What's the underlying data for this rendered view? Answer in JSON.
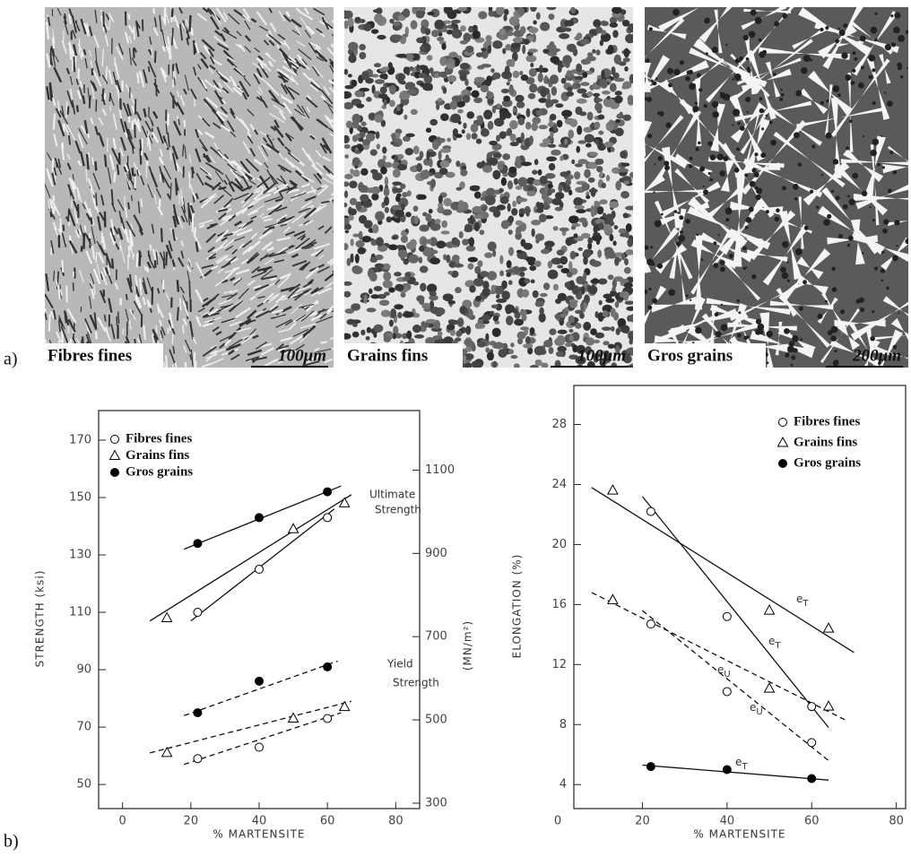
{
  "panel_a": {
    "label": "a)",
    "images": [
      {
        "caption": "Fibres fines",
        "scale_bar": "100μm"
      },
      {
        "caption": "Grains fins",
        "scale_bar": "100μm"
      },
      {
        "caption": "Gros grains",
        "scale_bar": "200μm"
      }
    ]
  },
  "panel_b": {
    "label": "b)"
  },
  "chart_data": [
    {
      "type": "scatter",
      "xlabel": "% MARTENSITE",
      "ylabel": "STRENGTH (ksi)",
      "y2label": "(MN/m²)",
      "xlim": [
        -7,
        87
      ],
      "xticks": [
        0,
        20,
        40,
        60,
        80
      ],
      "ylim": [
        41.6,
        180.3
      ],
      "yticks": [
        50,
        70,
        90,
        110,
        130,
        150,
        170
      ],
      "y2lim": [
        287,
        1243
      ],
      "y2ticks": [
        300,
        500,
        700,
        900,
        1100
      ],
      "legend": "upper-left",
      "grid": false,
      "series": [
        {
          "name": "Fibres fines",
          "marker": "circle-open",
          "color": "#000000",
          "x": [
            22,
            40,
            60,
            22,
            40,
            60
          ],
          "values": [
            110,
            125,
            143,
            59,
            63,
            73
          ]
        },
        {
          "name": "Grains fins",
          "marker": "triangle-open",
          "color": "#000000",
          "x": [
            13,
            50,
            65,
            13,
            50,
            65
          ],
          "values": [
            108,
            139,
            148,
            61,
            73,
            77
          ]
        },
        {
          "name": "Gros grains",
          "marker": "circle-filled",
          "color": "#000000",
          "x": [
            22,
            40,
            60,
            22,
            40,
            60
          ],
          "values": [
            134,
            143,
            152,
            75,
            86,
            91
          ]
        }
      ],
      "fit_lines": [
        {
          "style": "solid",
          "x": [
            18,
            64
          ],
          "values": [
            132,
            154
          ]
        },
        {
          "style": "solid",
          "x": [
            8,
            67
          ],
          "values": [
            107,
            151
          ]
        },
        {
          "style": "solid",
          "x": [
            20,
            62
          ],
          "values": [
            107,
            146
          ]
        },
        {
          "style": "dashed",
          "x": [
            18,
            63
          ],
          "values": [
            74,
            93
          ]
        },
        {
          "style": "dashed",
          "x": [
            8,
            67
          ],
          "values": [
            61,
            79
          ]
        },
        {
          "style": "dashed",
          "x": [
            18,
            64
          ],
          "values": [
            57,
            75
          ]
        }
      ],
      "annotations": [
        [
          "Ultimate",
          "Strength"
        ],
        [
          "Yield",
          "Strength"
        ]
      ]
    },
    {
      "type": "scatter",
      "xlabel": "% MARTENSITE",
      "ylabel": "ELONGATION (%)",
      "xlim": [
        3.8,
        82.2
      ],
      "xticks": [
        0,
        20,
        40,
        60,
        80
      ],
      "ylim": [
        2.4,
        30.6
      ],
      "yticks": [
        4,
        8,
        12,
        16,
        20,
        24,
        28
      ],
      "legend": "upper-right",
      "grid": false,
      "series": [
        {
          "name": "Fibres fines",
          "marker": "circle-open",
          "color": "#000000",
          "x": [
            22,
            40,
            60,
            22,
            40,
            60
          ],
          "values": [
            22.2,
            15.2,
            9.2,
            14.7,
            10.2,
            6.8
          ]
        },
        {
          "name": "Grains fins",
          "marker": "triangle-open",
          "color": "#000000",
          "x": [
            13,
            50,
            64,
            13,
            50,
            64
          ],
          "values": [
            23.6,
            15.6,
            14.4,
            16.3,
            10.4,
            9.2
          ]
        },
        {
          "name": "Gros grains",
          "marker": "circle-filled",
          "color": "#000000",
          "x": [
            22,
            40,
            60
          ],
          "values": [
            5.2,
            5.0,
            4.4
          ]
        }
      ],
      "fit_lines": [
        {
          "style": "solid",
          "x": [
            8,
            70
          ],
          "values": [
            23.8,
            12.8
          ]
        },
        {
          "style": "solid",
          "x": [
            20,
            64
          ],
          "values": [
            23.2,
            7.8
          ]
        },
        {
          "style": "dashed",
          "x": [
            8,
            68
          ],
          "values": [
            16.8,
            8.3
          ]
        },
        {
          "style": "dashed",
          "x": [
            20,
            64
          ],
          "values": [
            15.6,
            5.6
          ]
        },
        {
          "style": "solid",
          "x": [
            20,
            64
          ],
          "values": [
            5.3,
            4.3
          ]
        }
      ],
      "annotations": [
        [
          "e",
          "T"
        ],
        [
          "e",
          "U"
        ],
        [
          "e",
          "T"
        ],
        [
          "e",
          "U"
        ],
        [
          "e",
          "T"
        ]
      ]
    }
  ]
}
